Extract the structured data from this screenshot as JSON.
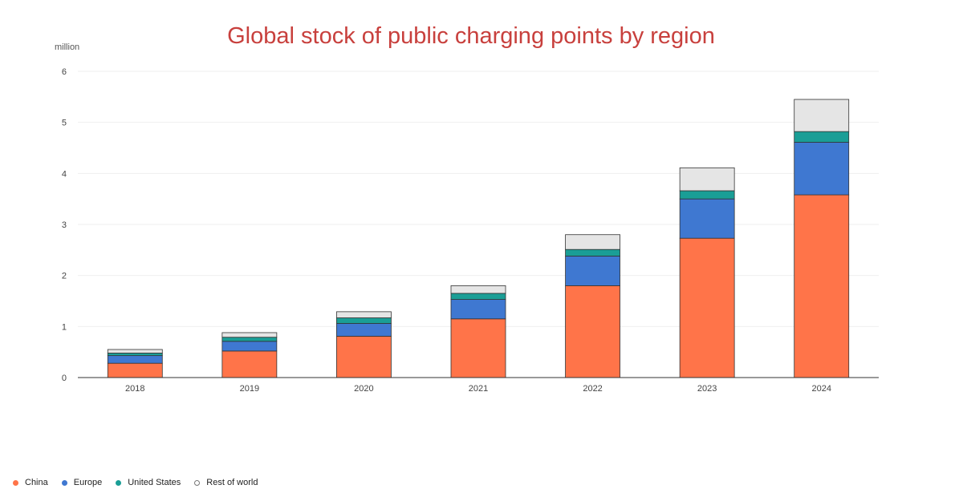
{
  "chart_data": {
    "type": "bar",
    "stacked": true,
    "title": "Global stock of public charging points by region",
    "unit_label": "million",
    "categories": [
      "2018",
      "2019",
      "2020",
      "2021",
      "2022",
      "2023",
      "2024"
    ],
    "ylim": [
      0,
      6
    ],
    "yticks": [
      "0",
      "1",
      "2",
      "3",
      "4",
      "5",
      "6"
    ],
    "grid": true,
    "legend_position": "bottom-left",
    "series": [
      {
        "name": "China",
        "color": "#ff7449",
        "values": [
          0.28,
          0.52,
          0.81,
          1.15,
          1.8,
          2.73,
          3.58
        ]
      },
      {
        "name": "Europe",
        "color": "#3f78d1",
        "values": [
          0.15,
          0.19,
          0.25,
          0.38,
          0.58,
          0.77,
          1.03
        ]
      },
      {
        "name": "United States",
        "color": "#1a9e96",
        "values": [
          0.05,
          0.08,
          0.11,
          0.12,
          0.13,
          0.16,
          0.21
        ]
      },
      {
        "name": "Rest of world",
        "color": "#e5e5e5",
        "values": [
          0.07,
          0.09,
          0.12,
          0.15,
          0.29,
          0.45,
          0.63
        ]
      }
    ]
  }
}
